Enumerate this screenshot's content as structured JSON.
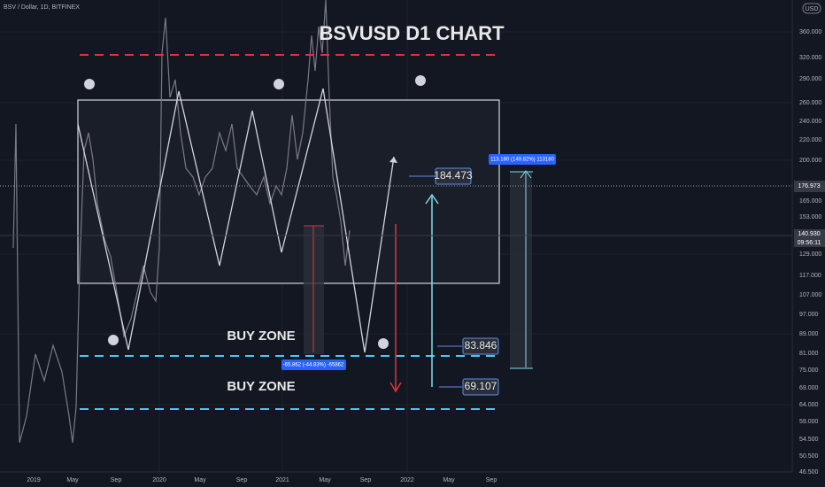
{
  "header": {
    "symbol": "BSV / Dollar, 1D, BITFINEX",
    "currency": "USD"
  },
  "title": "BSVUSD D1 CHART",
  "zones": [
    "BUY ZONE",
    "BUY ZONE"
  ],
  "targets": [
    "184.473",
    "83.846",
    "69.107"
  ],
  "measures": [
    "113.180 (149.82%) 113180",
    "-65.862 (-44.83%) -65862"
  ],
  "price_tags": [
    "176.973",
    "140.930",
    "09:56:11"
  ],
  "price_axis": [
    "360.000",
    "320.000",
    "290.000",
    "260.000",
    "240.000",
    "220.000",
    "200.000",
    "165.000",
    "153.000",
    "129.000",
    "117.000",
    "107.000",
    "97.000",
    "89.000",
    "81.000",
    "75.000",
    "69.000",
    "64.000",
    "59.000",
    "54.500",
    "50.500",
    "46.500"
  ],
  "time_axis": [
    "2019",
    "May",
    "Sep",
    "2020",
    "May",
    "Sep",
    "2021",
    "May",
    "Sep",
    "2022",
    "May",
    "Sep"
  ]
}
